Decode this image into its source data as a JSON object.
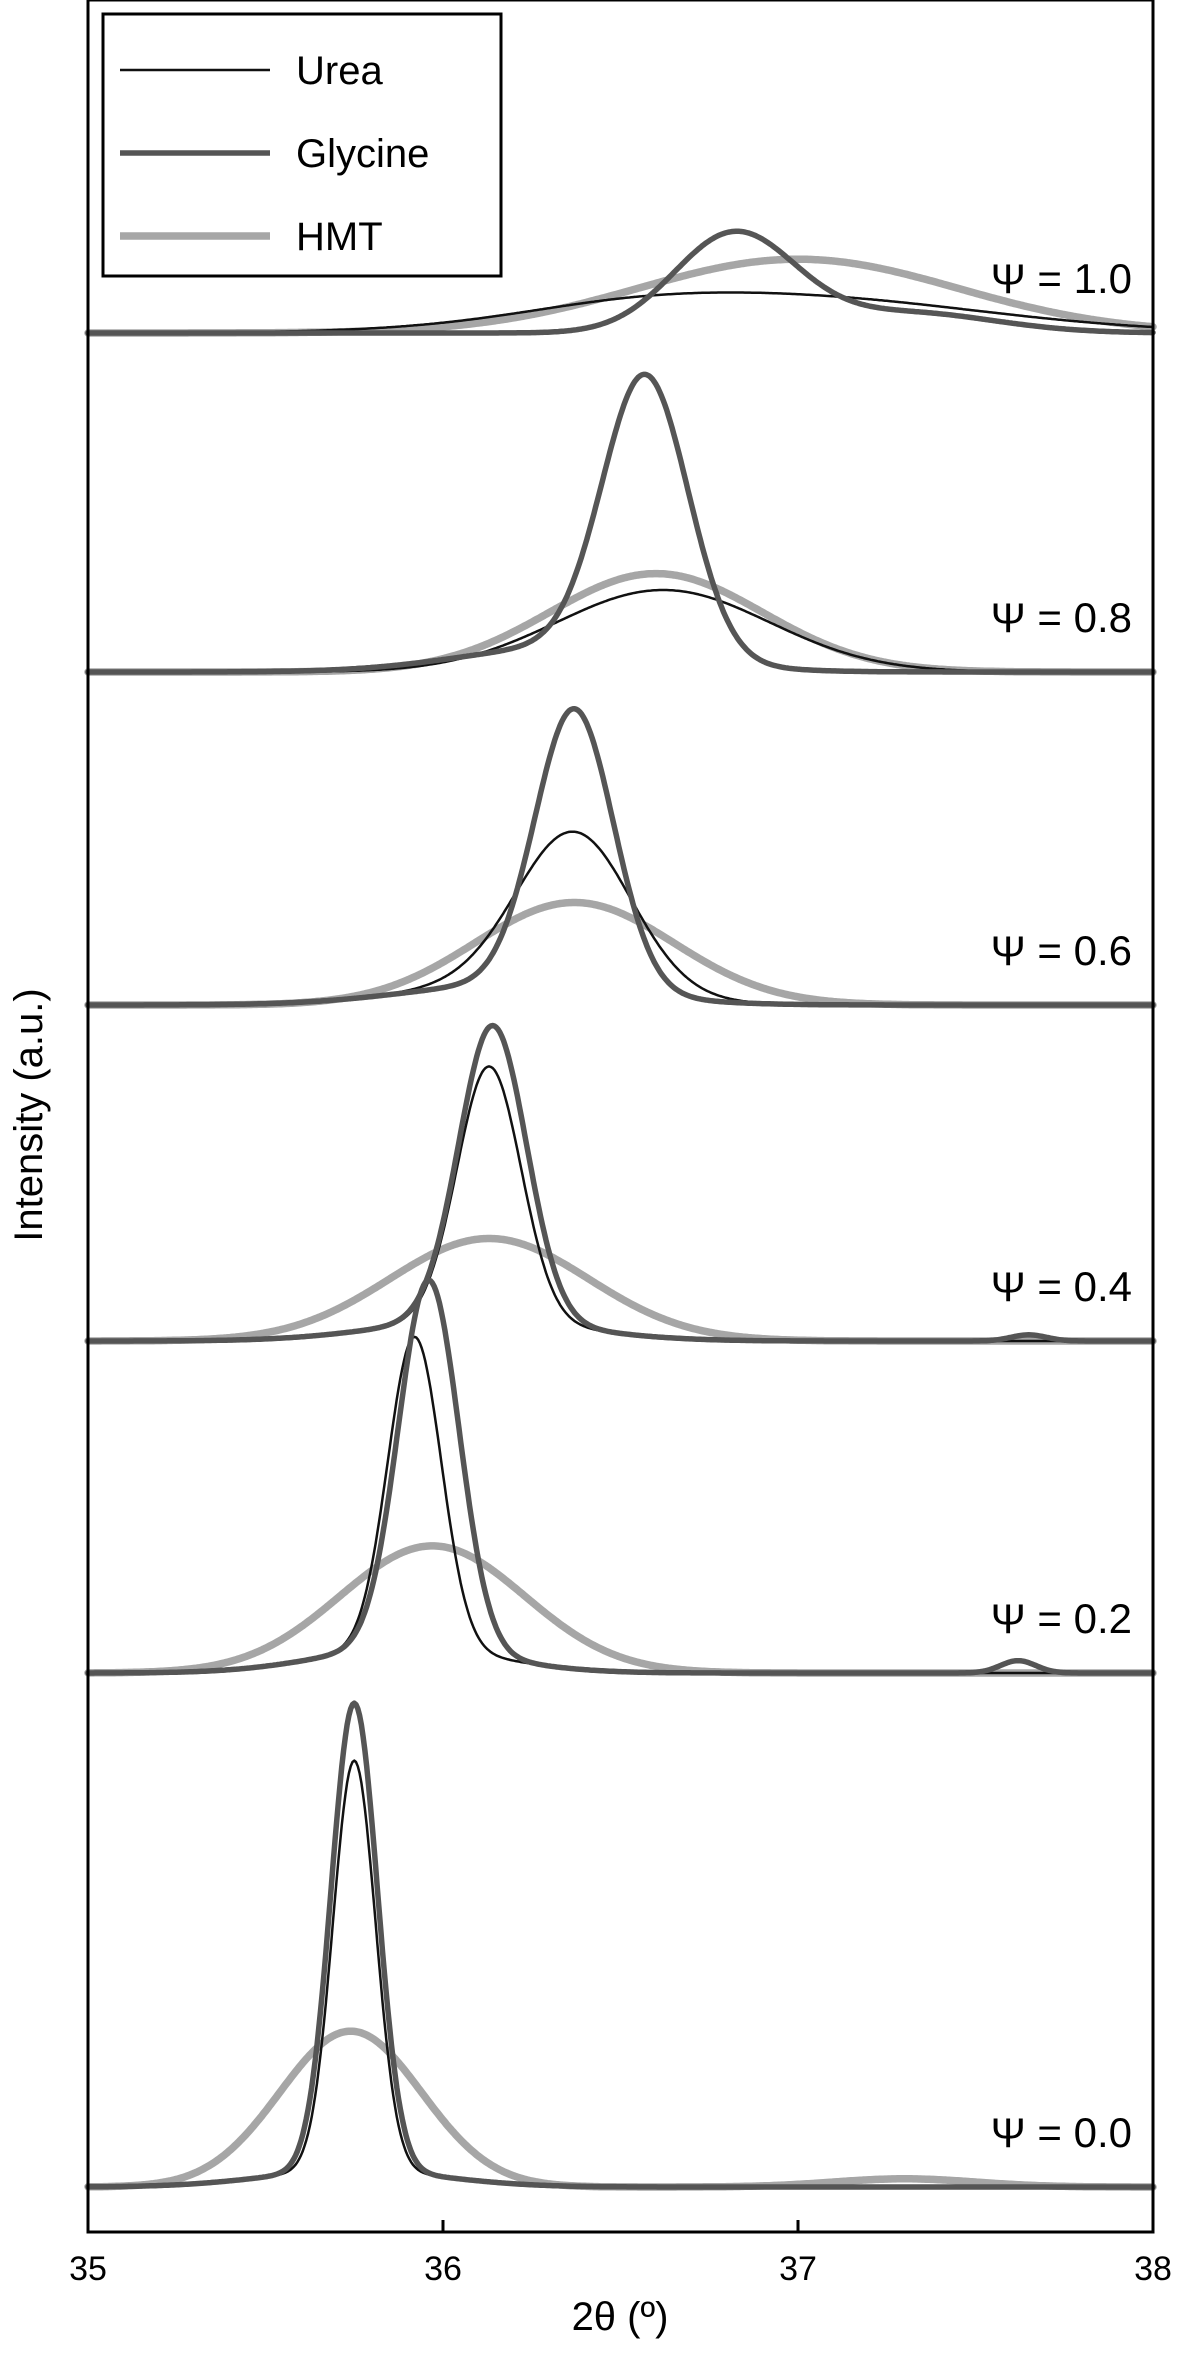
{
  "chart_data": {
    "type": "line",
    "xlabel": "2θ (º)",
    "ylabel": "Intensity (a.u.)",
    "xlim": [
      35,
      38
    ],
    "x_ticks": [
      "35",
      "36",
      "37",
      "38"
    ],
    "y_ticks": [],
    "legend": {
      "placement": "top-left",
      "entries": [
        "Urea",
        "Glycine",
        "HMT"
      ]
    },
    "colors": {
      "Urea": "#111111",
      "Glycine": "#555555",
      "HMT": "#a6a6a6"
    },
    "panels": [
      {
        "label": "Ψ = 1.0",
        "series": [
          {
            "name": "Urea",
            "peaks": [
              {
                "x": 36.95,
                "height": 0.09,
                "width": 0.55
              },
              {
                "x": 36.5,
                "height": 0.02,
                "width": 0.3
              }
            ]
          },
          {
            "name": "Glycine",
            "peaks": [
              {
                "x": 36.82,
                "height": 0.24,
                "width": 0.17
              },
              {
                "x": 37.3,
                "height": 0.05,
                "width": 0.25
              }
            ]
          },
          {
            "name": "HMT",
            "peaks": [
              {
                "x": 37.0,
                "height": 0.18,
                "width": 0.45
              }
            ]
          }
        ]
      },
      {
        "label": "Ψ = 0.8",
        "series": [
          {
            "name": "Urea",
            "peaks": [
              {
                "x": 36.62,
                "height": 0.2,
                "width": 0.3
              }
            ]
          },
          {
            "name": "Glycine",
            "peaks": [
              {
                "x": 36.57,
                "height": 0.68,
                "width": 0.12
              },
              {
                "x": 36.35,
                "height": 0.06,
                "width": 0.3
              }
            ]
          },
          {
            "name": "HMT",
            "peaks": [
              {
                "x": 36.6,
                "height": 0.24,
                "width": 0.3
              }
            ]
          }
        ]
      },
      {
        "label": "Ψ = 0.6",
        "series": [
          {
            "name": "Urea",
            "peaks": [
              {
                "x": 36.37,
                "height": 0.38,
                "width": 0.16
              },
              {
                "x": 36.2,
                "height": 0.05,
                "width": 0.3
              }
            ]
          },
          {
            "name": "Glycine",
            "peaks": [
              {
                "x": 36.37,
                "height": 0.68,
                "width": 0.11
              },
              {
                "x": 36.2,
                "height": 0.05,
                "width": 0.3
              }
            ]
          },
          {
            "name": "HMT",
            "peaks": [
              {
                "x": 36.37,
                "height": 0.25,
                "width": 0.28
              }
            ]
          }
        ]
      },
      {
        "label": "Ψ = 0.4",
        "series": [
          {
            "name": "Urea",
            "peaks": [
              {
                "x": 36.13,
                "height": 0.62,
                "width": 0.09
              },
              {
                "x": 36.1,
                "height": 0.05,
                "width": 0.28
              }
            ]
          },
          {
            "name": "Glycine",
            "peaks": [
              {
                "x": 36.14,
                "height": 0.72,
                "width": 0.095
              },
              {
                "x": 36.1,
                "height": 0.05,
                "width": 0.28
              },
              {
                "x": 37.65,
                "height": 0.015,
                "width": 0.05
              }
            ]
          },
          {
            "name": "HMT",
            "peaks": [
              {
                "x": 36.13,
                "height": 0.25,
                "width": 0.28
              }
            ]
          }
        ]
      },
      {
        "label": "Ψ = 0.2",
        "series": [
          {
            "name": "Urea",
            "peaks": [
              {
                "x": 35.92,
                "height": 0.76,
                "width": 0.075
              },
              {
                "x": 35.9,
                "height": 0.06,
                "width": 0.25
              }
            ]
          },
          {
            "name": "Glycine",
            "peaks": [
              {
                "x": 35.96,
                "height": 0.9,
                "width": 0.085
              },
              {
                "x": 35.9,
                "height": 0.06,
                "width": 0.25
              },
              {
                "x": 37.62,
                "height": 0.03,
                "width": 0.05
              }
            ]
          },
          {
            "name": "HMT",
            "peaks": [
              {
                "x": 35.97,
                "height": 0.31,
                "width": 0.26
              }
            ]
          }
        ]
      },
      {
        "label": "Ψ = 0.0",
        "series": [
          {
            "name": "Urea",
            "peaks": [
              {
                "x": 35.75,
                "height": 1.0,
                "width": 0.06
              },
              {
                "x": 35.75,
                "height": 0.04,
                "width": 0.25
              }
            ]
          },
          {
            "name": "Glycine",
            "peaks": [
              {
                "x": 35.75,
                "height": 1.14,
                "width": 0.065
              },
              {
                "x": 35.75,
                "height": 0.04,
                "width": 0.25
              }
            ]
          },
          {
            "name": "HMT",
            "peaks": [
              {
                "x": 35.74,
                "height": 0.38,
                "width": 0.2
              },
              {
                "x": 37.3,
                "height": 0.02,
                "width": 0.2
              }
            ]
          }
        ]
      }
    ]
  }
}
